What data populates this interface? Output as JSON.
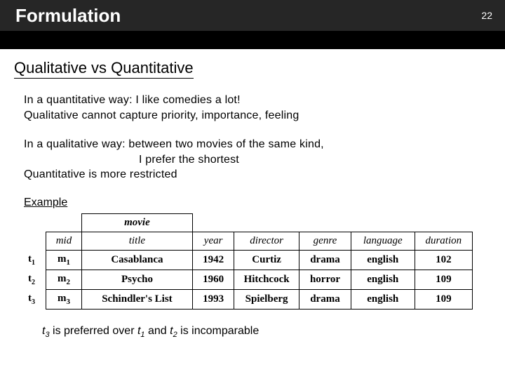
{
  "header": {
    "title": "Formulation",
    "page_number": "22"
  },
  "section_heading": "Qualitative vs Quantitative",
  "para1_line1": "In a quantitative way: I like comedies a lot!",
  "para1_line2": "Qualitative cannot capture priority, importance, feeling",
  "para2_line1": "In a qualitative way: between two movies of the same kind,",
  "para2_line2": "I prefer the shortest",
  "para2_line3": "Quantitative is more restricted",
  "example_label": "Example",
  "table": {
    "movie_label": "movie",
    "columns": [
      "mid",
      "title",
      "year",
      "director",
      "genre",
      "language",
      "duration"
    ],
    "row_labels": [
      "t",
      "t",
      "t"
    ],
    "row_subs": [
      "1",
      "2",
      "3"
    ],
    "rows": [
      [
        "m",
        "1",
        "Casablanca",
        "1942",
        "Curtiz",
        "drama",
        "english",
        "102"
      ],
      [
        "m",
        "2",
        "Psycho",
        "1960",
        "Hitchcock",
        "horror",
        "english",
        "109"
      ],
      [
        "m",
        "3",
        "Schindler's List",
        "1993",
        "Spielberg",
        "drama",
        "english",
        "109"
      ]
    ],
    "col_widths": [
      "48px",
      "150px",
      "56px",
      "88px",
      "70px",
      "86px",
      "78px"
    ]
  },
  "conclusion_parts": {
    "p1": "t",
    "s1": "3",
    "p2": " is preferred over ",
    "p3": "t",
    "s2": "1",
    "p4": " and ",
    "p5": "t",
    "s3": "2",
    "p6": " is incomparable"
  }
}
